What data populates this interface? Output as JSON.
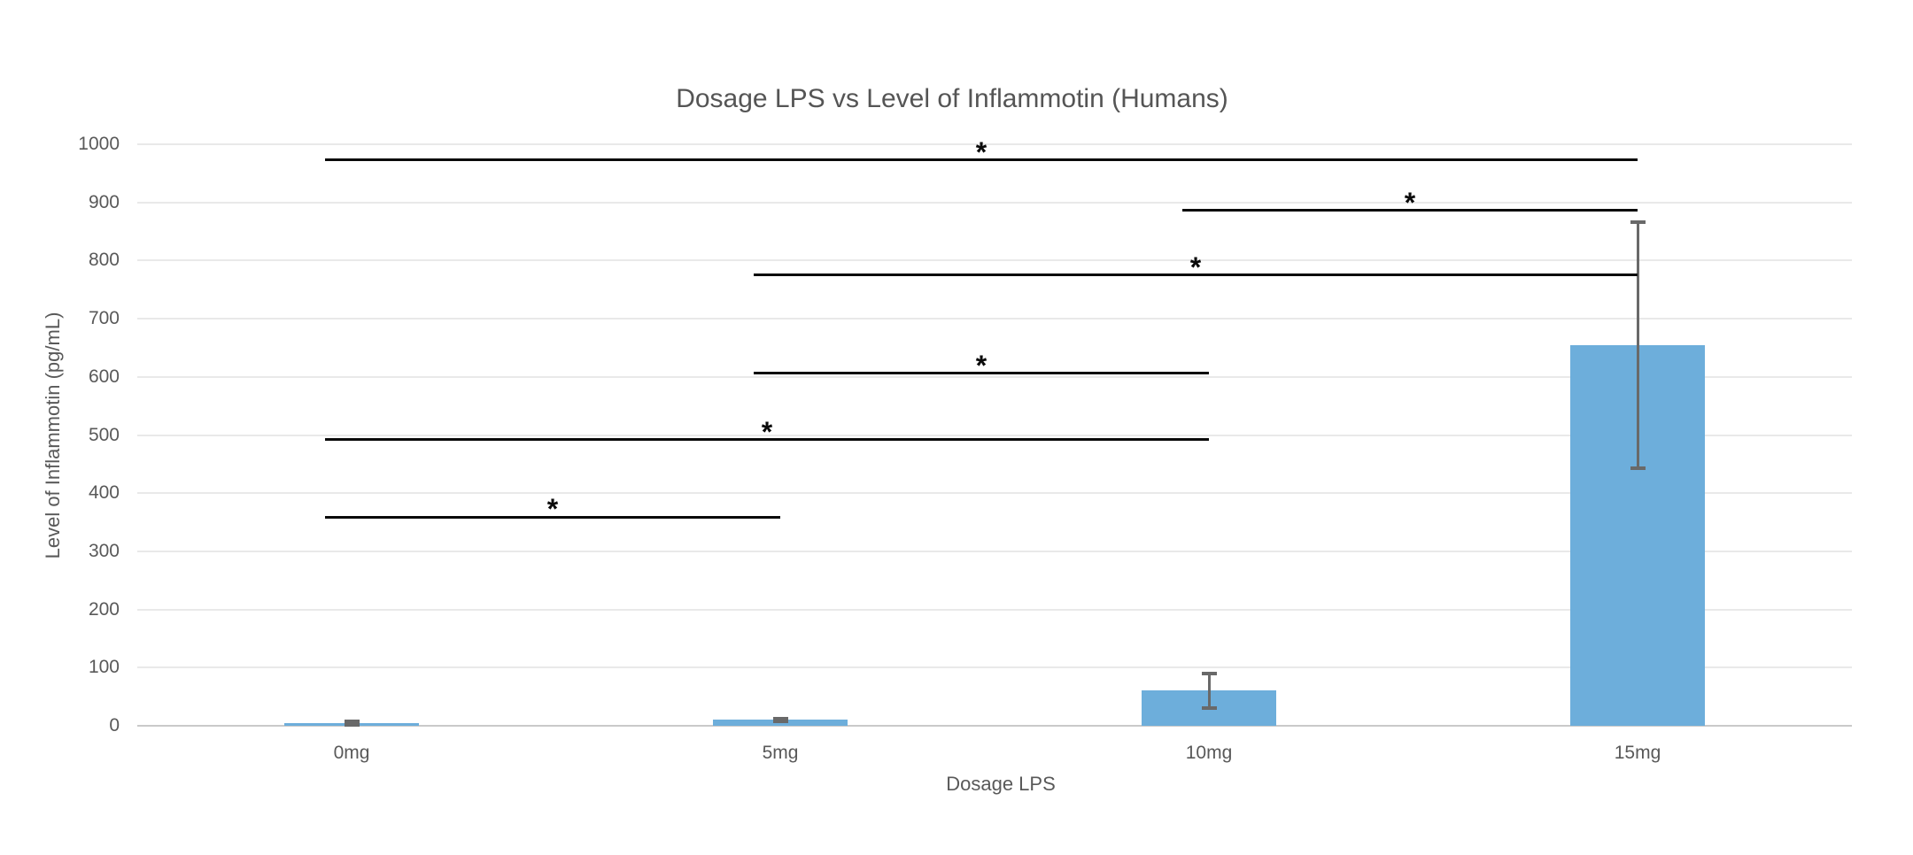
{
  "chart": {
    "title": "Dosage LPS vs Level of Inflammotin (Humans)",
    "x_axis_label": "Dosage LPS",
    "y_axis_label": "Level of Inflammotin (pg/mL)"
  },
  "chart_data": {
    "type": "bar",
    "title": "Dosage LPS vs Level of Inflammotin (Humans)",
    "xlabel": "Dosage LPS",
    "ylabel": "Level of Inflammotin (pg/mL)",
    "categories": [
      "0mg",
      "5mg",
      "10mg",
      "15mg"
    ],
    "values": [
      5,
      10,
      61,
      655
    ],
    "error_bars": [
      4,
      3,
      31,
      212
    ],
    "ylim": [
      0,
      1000
    ],
    "y_ticks": [
      0,
      100,
      200,
      300,
      400,
      500,
      600,
      700,
      800,
      900,
      1000
    ],
    "grid": "horizontal-only",
    "legend": "none",
    "colors": {
      "bar": "#6daedb",
      "error_bar": "#696969",
      "gridline": "#e9e9e9",
      "axis_line": "#c9c9c9",
      "text": "#595959",
      "title_text": "#555555",
      "significance": "#0a0a0a"
    },
    "significance": [
      {
        "between": [
          "0mg",
          "15mg"
        ],
        "y_value": 973,
        "marker": "*"
      },
      {
        "between": [
          "10mg",
          "15mg"
        ],
        "y_value": 886,
        "marker": "*"
      },
      {
        "between": [
          "5mg",
          "15mg"
        ],
        "y_value": 775,
        "marker": "*"
      },
      {
        "between": [
          "5mg",
          "10mg"
        ],
        "y_value": 606,
        "marker": "*"
      },
      {
        "between": [
          "0mg",
          "10mg"
        ],
        "y_value": 492,
        "marker": "*"
      },
      {
        "between": [
          "0mg",
          "5mg"
        ],
        "y_value": 359,
        "marker": "*"
      }
    ]
  }
}
